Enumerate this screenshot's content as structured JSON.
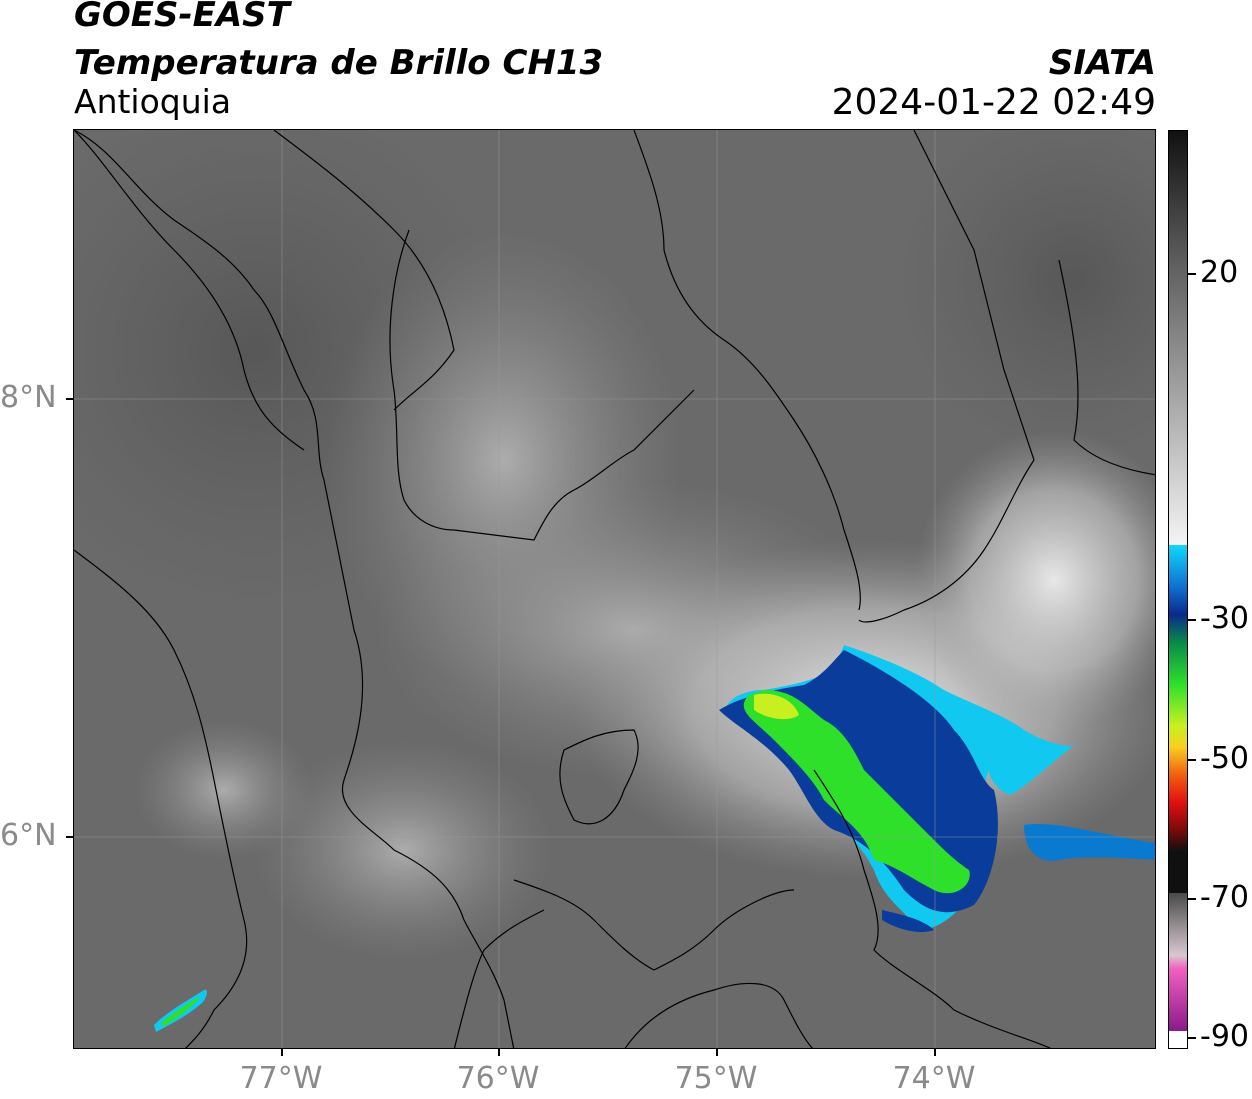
{
  "header": {
    "satellite": "GOES-EAST",
    "product": "Temperatura de Brillo CH13",
    "region": "Antioquia",
    "organization": "SIATA",
    "datetime": "2024-01-22 02:49"
  },
  "map": {
    "lat_ticks": [
      "8°N",
      "6°N"
    ],
    "lon_ticks": [
      "77°W",
      "76°W",
      "75°W",
      "74°W"
    ]
  },
  "colorbar": {
    "tick_labels": [
      "20",
      "-30",
      "-50",
      "-70",
      "-90"
    ]
  },
  "colors": {
    "land_gray": "#6e6e6e",
    "cold_green": "#2ee02a",
    "cold_blue": "#0a3c9c",
    "cold_cyan": "#10c8f0"
  }
}
